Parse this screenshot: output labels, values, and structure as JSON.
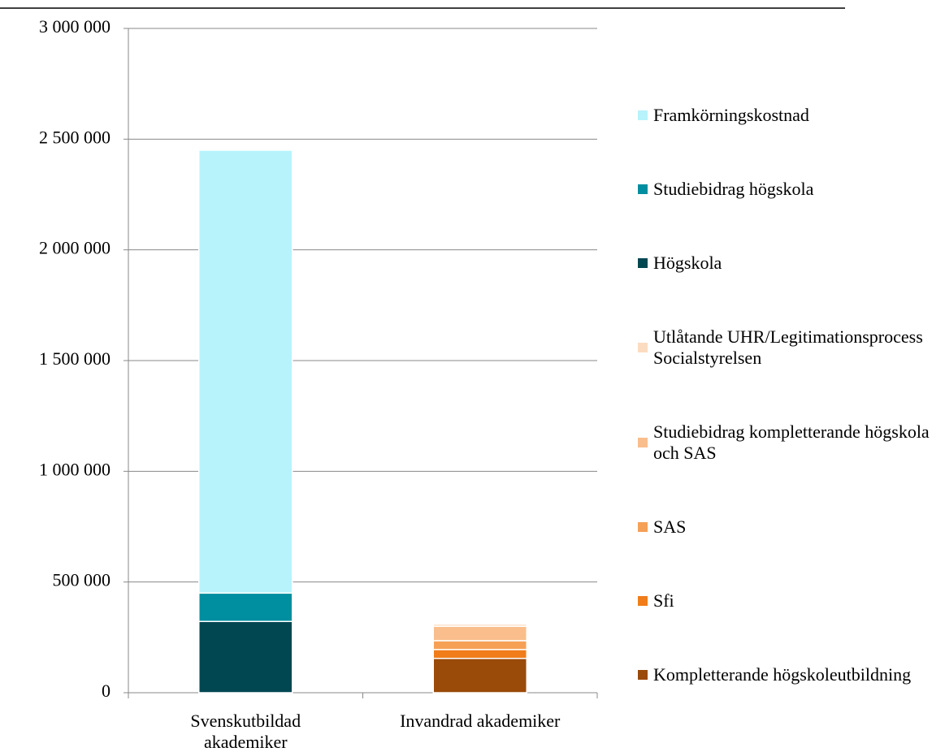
{
  "chart_data": {
    "type": "stacked_bar",
    "categories": [
      "Svenskutbildad akademiker",
      "Invandrad akademiker"
    ],
    "series": [
      {
        "name": "Kompletterande högskoleutbildning",
        "color": "#9a4a09",
        "values": [
          null,
          155000
        ]
      },
      {
        "name": "Sfi",
        "color": "#f07d1a",
        "values": [
          null,
          40000
        ]
      },
      {
        "name": "SAS",
        "color": "#f6a056",
        "values": [
          null,
          40000
        ]
      },
      {
        "name": "Studiebidrag kompletterande högskola och SAS",
        "color": "#f9be8c",
        "values": [
          null,
          65000
        ]
      },
      {
        "name": "Utlåtande UHR/Legitimationsprocess Socialstyrelsen",
        "color": "#fcdcc0",
        "values": [
          null,
          10000
        ]
      },
      {
        "name": "Högskola",
        "color": "#004752",
        "values": [
          322000,
          null
        ]
      },
      {
        "name": "Studiebidrag högskola",
        "color": "#008fa0",
        "values": [
          128000,
          null
        ]
      },
      {
        "name": "Framkörningskostnad",
        "color": "#b7f3fb",
        "values": [
          2000000,
          null
        ]
      }
    ],
    "ylim": [
      0,
      3000000
    ],
    "yticks": [
      0,
      {
        "value": 500000,
        "label": "500 000"
      },
      {
        "value": 1000000,
        "label": "1 000 000"
      },
      {
        "value": 1500000,
        "label": "1 500 000"
      },
      {
        "value": 2000000,
        "label": "2 000 000"
      },
      {
        "value": 2500000,
        "label": "2 500 000"
      },
      {
        "value": 3000000,
        "label": "3 000 000"
      }
    ],
    "grid": true,
    "legend": "right"
  }
}
